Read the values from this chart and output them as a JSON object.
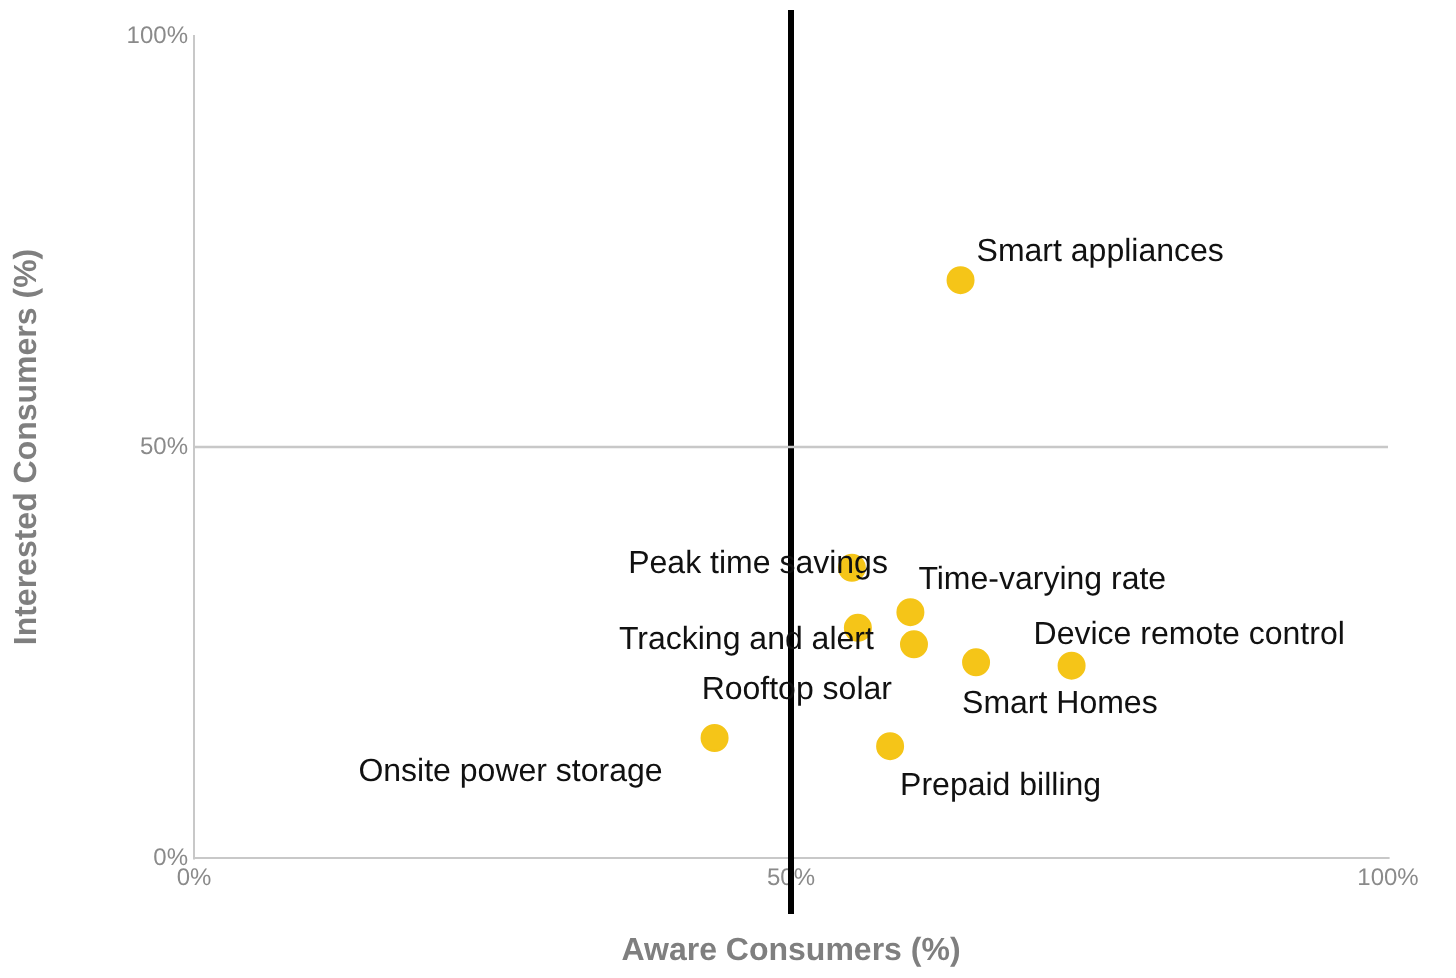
{
  "chart_data": {
    "type": "scatter",
    "xlabel": "Aware Consumers (%)",
    "ylabel": "Interested Consumers (%)",
    "x": [
      64.2,
      55.1,
      60.0,
      55.6,
      60.3,
      65.5,
      73.5,
      43.6,
      58.3
    ],
    "series": [
      {
        "color": "#f5c518",
        "values": [
          70.3,
          35.3,
          29.9,
          28.0,
          26.0,
          23.8,
          23.4,
          14.6,
          13.6
        ]
      }
    ],
    "xlim": [
      0,
      100
    ],
    "ylim": [
      0,
      100
    ],
    "xticks": [
      {
        "value": 0,
        "label": "0%"
      },
      {
        "value": 50,
        "label": "50%"
      },
      {
        "value": 100,
        "label": "100%"
      }
    ],
    "yticks": [
      {
        "value": 0,
        "label": "0%"
      },
      {
        "value": 50,
        "label": "50%"
      },
      {
        "value": 100,
        "label": "100%"
      }
    ],
    "grid": false,
    "legend": false,
    "marker": "circle",
    "ref_lines": [
      {
        "axis": "x",
        "value": 50,
        "color": "#000000"
      },
      {
        "axis": "y",
        "value": 50,
        "color": "#c8c8c8"
      }
    ],
    "annotations": [
      {
        "text": "Smart appliances",
        "x": 64.2,
        "y": 70.3
      },
      {
        "text": "Peak time savings",
        "x": 55.1,
        "y": 35.3
      },
      {
        "text": "Time-varying rate",
        "x": 60.0,
        "y": 29.9
      },
      {
        "text": "Tracking and alert",
        "x": 55.6,
        "y": 28.0
      },
      {
        "text": "Rooftop solar",
        "x": 60.3,
        "y": 26.0
      },
      {
        "text": "Smart Homes",
        "x": 65.5,
        "y": 23.8
      },
      {
        "text": "Device remote control",
        "x": 73.5,
        "y": 23.4
      },
      {
        "text": "Onsite power storage",
        "x": 43.6,
        "y": 14.6
      },
      {
        "text": "Prepaid billing",
        "x": 58.3,
        "y": 13.6
      }
    ]
  }
}
